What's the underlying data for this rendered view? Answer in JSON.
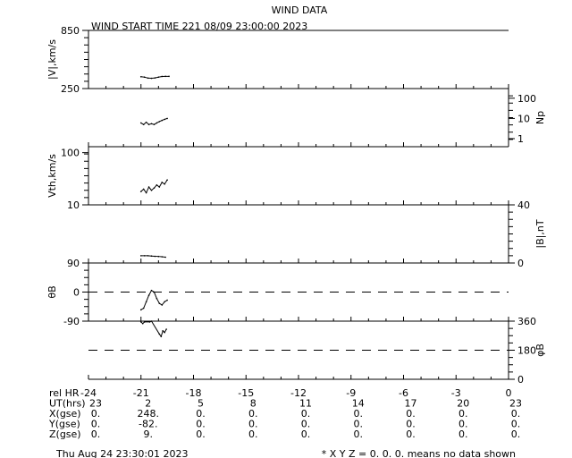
{
  "title": "WIND DATA",
  "start_time": "WIND START TIME 221 08/09 23:00:00 2023",
  "footer_date": "Thu Aug 24 23:30:01 2023",
  "footer_note": "* X Y Z = 0. 0. 0. means no data shown",
  "table": {
    "rows": [
      {
        "label": "rel HR",
        "values": [
          "-24",
          "-21",
          "-18",
          "-15",
          "-12",
          "-9",
          "-6",
          "-3",
          "0"
        ]
      },
      {
        "label": "UT(hrs)",
        "values": [
          "23",
          "2",
          "5",
          "8",
          "11",
          "14",
          "17",
          "20",
          "23"
        ]
      },
      {
        "label": "X(gse)",
        "values": [
          "0.",
          "248.",
          "0.",
          "0.",
          "0.",
          "0.",
          "0.",
          "0.",
          "0."
        ]
      },
      {
        "label": "Y(gse)",
        "values": [
          "0.",
          "-82.",
          "0.",
          "0.",
          "0.",
          "0.",
          "0.",
          "0.",
          "0."
        ]
      },
      {
        "label": "Z(gse)",
        "values": [
          "0.",
          "9.",
          "0.",
          "0.",
          "0.",
          "0.",
          "0.",
          "0.",
          "0."
        ]
      }
    ]
  },
  "chart_data": {
    "type": "line",
    "xlim": [
      -24,
      0
    ],
    "xlabel": "rel HR",
    "panels": [
      {
        "ylabel": "|V|,km/s",
        "side": "left",
        "scale": "linear",
        "ylim": [
          250,
          850
        ],
        "ticklabels": [
          "850",
          "250"
        ],
        "tickvalues": [
          850,
          250
        ],
        "x": [
          -21,
          -20.8,
          -20.6,
          -20.4,
          -20.2,
          -20.0,
          -19.8,
          -19.6,
          -19.4
        ],
        "y": [
          372,
          368,
          358,
          356,
          360,
          368,
          375,
          376,
          376
        ]
      },
      {
        "ylabel": "Np",
        "side": "right",
        "scale": "log",
        "ylim": [
          0.4,
          300
        ],
        "ticklabels": [
          "100",
          "10",
          "1"
        ],
        "tickvalues": [
          100,
          10,
          1
        ],
        "x": [
          -21,
          -20.85,
          -20.7,
          -20.55,
          -20.4,
          -20.25,
          -20.1,
          -19.95,
          -19.8,
          -19.65,
          -19.5
        ],
        "y": [
          6,
          5,
          6.5,
          5,
          5.5,
          5,
          6,
          7,
          8,
          9,
          10
        ]
      },
      {
        "ylabel": "Vth,km/s",
        "side": "left",
        "scale": "log",
        "ylim": [
          10,
          130
        ],
        "ticklabels": [
          "100",
          "10"
        ],
        "tickvalues": [
          100,
          10
        ],
        "x": [
          -21,
          -20.85,
          -20.7,
          -20.55,
          -20.4,
          -20.25,
          -20.1,
          -19.95,
          -19.8,
          -19.65,
          -19.5
        ],
        "y": [
          18,
          20,
          17,
          22,
          19,
          21,
          24,
          22,
          27,
          25,
          30
        ]
      },
      {
        "ylabel": "|B|,nT",
        "side": "right",
        "scale": "linear",
        "ylim": [
          0,
          40
        ],
        "ticklabels": [
          "40",
          "0"
        ],
        "tickvalues": [
          40,
          0
        ],
        "x": [
          -21,
          -20.8,
          -20.6,
          -20.4,
          -20.2,
          -20.0,
          -19.8,
          -19.6
        ],
        "y": [
          5,
          5,
          5,
          4.8,
          4.6,
          4.5,
          4.3,
          4.0
        ]
      },
      {
        "ylabel": "θB",
        "side": "left",
        "scale": "linear",
        "ylim": [
          -90,
          90
        ],
        "ticklabels": [
          "90",
          "0",
          "-90"
        ],
        "tickvalues": [
          90,
          0,
          -90
        ],
        "dashed_at": 0,
        "x": [
          -21,
          -20.85,
          -20.7,
          -20.55,
          -20.4,
          -20.25,
          -20.1,
          -19.95,
          -19.8,
          -19.65,
          -19.5
        ],
        "y": [
          -55,
          -50,
          -30,
          -10,
          5,
          0,
          -20,
          -35,
          -40,
          -30,
          -25
        ]
      },
      {
        "ylabel": "φB",
        "side": "right",
        "scale": "linear",
        "ylim": [
          0,
          360
        ],
        "ticklabels": [
          "360",
          "180",
          "0"
        ],
        "tickvalues": [
          360,
          180,
          0
        ],
        "dashed_at": 180,
        "x": [
          -21,
          -20.9,
          -20.8,
          -20.5,
          -20.4,
          -19.95,
          -19.85,
          -19.75,
          -19.65,
          -19.55
        ],
        "y": [
          355,
          345,
          355,
          355,
          360,
          280,
          265,
          300,
          290,
          310
        ]
      }
    ]
  }
}
